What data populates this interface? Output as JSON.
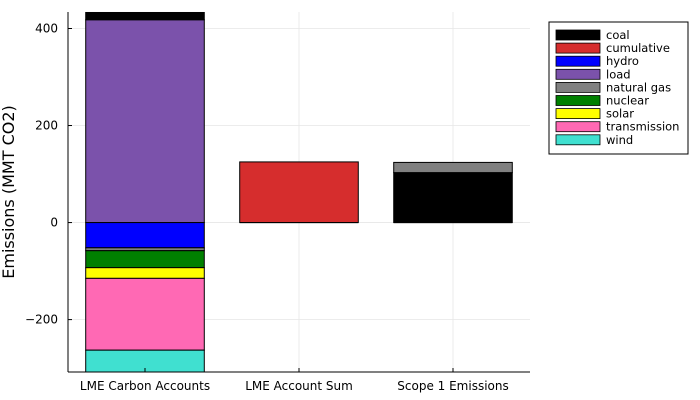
{
  "chart_data": {
    "type": "bar",
    "stacked": true,
    "ylabel": "Emissions (MMT CO2)",
    "xlabel": "",
    "title": "",
    "ylim": [
      -308,
      434
    ],
    "yticks": [
      -200,
      0,
      200,
      400
    ],
    "grid": true,
    "legend_position": "top-right, outside plot",
    "categories": [
      "LME Carbon Accounts",
      "LME Account Sum",
      "Scope 1 Emissions"
    ],
    "series": [
      {
        "name": "coal",
        "color": "#000000",
        "values": [
          15,
          0,
          103
        ]
      },
      {
        "name": "cumulative",
        "color": "#d62d2d",
        "values": [
          0,
          125,
          0
        ]
      },
      {
        "name": "hydro",
        "color": "#0000ff",
        "values": [
          -52,
          0,
          0
        ]
      },
      {
        "name": "load",
        "color": "#7b52ab",
        "values": [
          418,
          0,
          0
        ]
      },
      {
        "name": "natural gas",
        "color": "#808080",
        "values": [
          -6,
          0,
          21
        ]
      },
      {
        "name": "nuclear",
        "color": "#008000",
        "values": [
          -35,
          0,
          0
        ]
      },
      {
        "name": "solar",
        "color": "#ffff00",
        "values": [
          -22,
          0,
          0
        ]
      },
      {
        "name": "transmission",
        "color": "#ff69b4",
        "values": [
          -148,
          0,
          0
        ]
      },
      {
        "name": "wind",
        "color": "#40e0d0",
        "values": [
          -45,
          0,
          0
        ]
      }
    ],
    "stack_order": {
      "positive": [
        "load",
        "coal",
        "natural gas",
        "cumulative"
      ],
      "negative": [
        "hydro",
        "natural gas",
        "nuclear",
        "solar",
        "transmission",
        "wind"
      ]
    }
  }
}
